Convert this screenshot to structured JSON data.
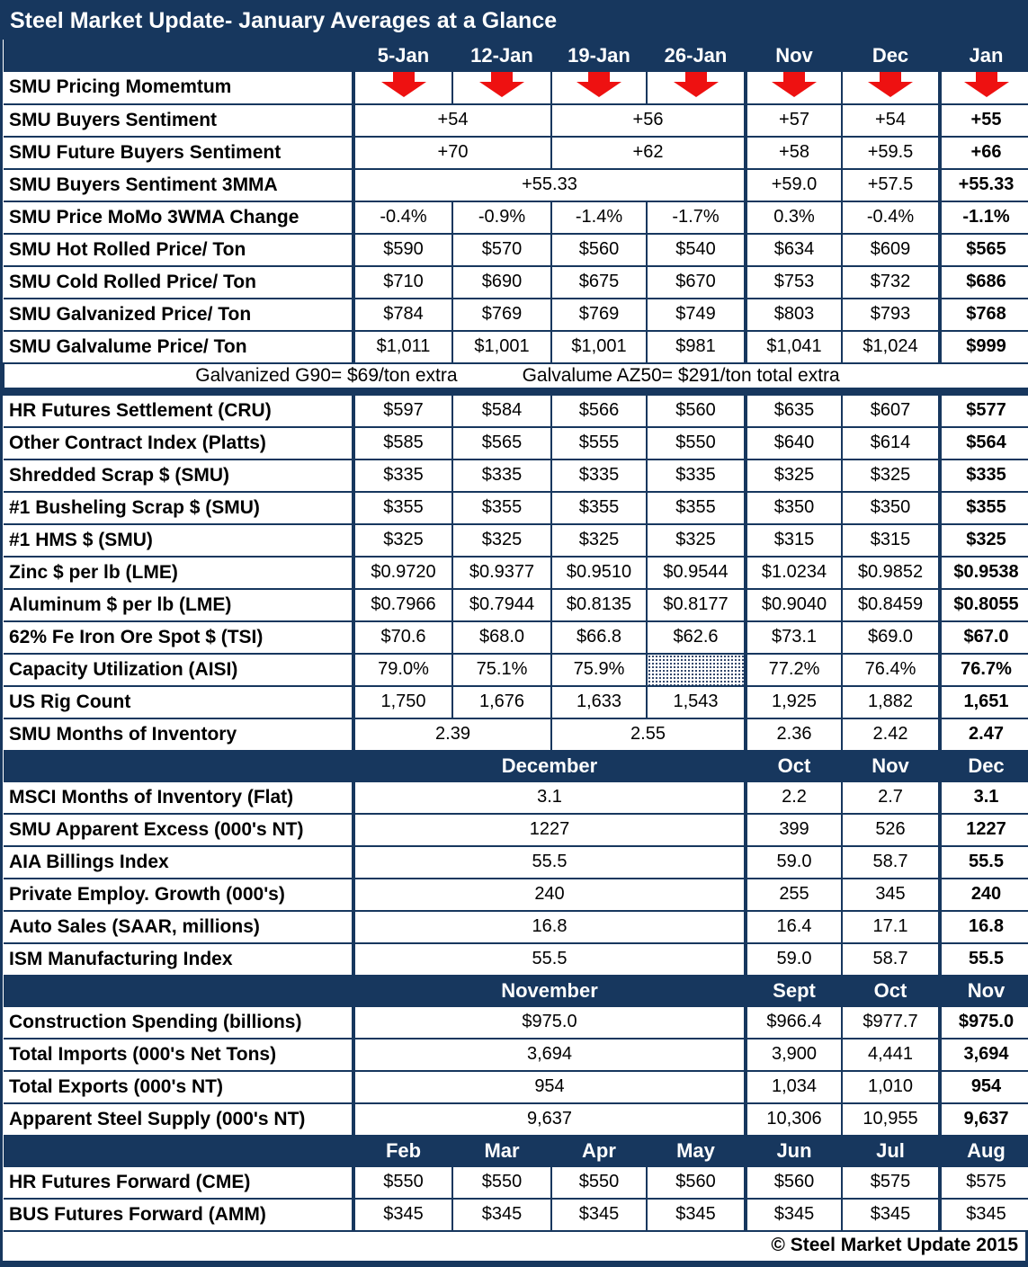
{
  "title": "Steel Market Update- January Averages at a Glance",
  "footer": "© Steel Market Update 2015",
  "colors": {
    "navy": "#17375E",
    "arrow_red": "#EE1111",
    "cell_bg": "#FFFFFF",
    "text": "#000000"
  },
  "rows": [
    {
      "kind": "colheader",
      "label": "",
      "cells": [
        {
          "t": "5-Jan"
        },
        {
          "t": "12-Jan"
        },
        {
          "t": "19-Jan"
        },
        {
          "t": "26-Jan"
        },
        {
          "t": "Nov"
        },
        {
          "t": "Dec"
        },
        {
          "t": "Jan"
        }
      ]
    },
    {
      "kind": "data",
      "label": "SMU Pricing Momemtum",
      "cells": [
        {
          "arrow": "down"
        },
        {
          "arrow": "down"
        },
        {
          "arrow": "down"
        },
        {
          "arrow": "down"
        },
        {
          "arrow": "down"
        },
        {
          "arrow": "down"
        },
        {
          "arrow": "down"
        }
      ]
    },
    {
      "kind": "data",
      "label": "SMU Buyers Sentiment",
      "cells": [
        {
          "t": "+54",
          "s": 2
        },
        {
          "t": "+56",
          "s": 2
        },
        {
          "t": "+57"
        },
        {
          "t": "+54"
        },
        {
          "t": "+55",
          "b": true
        }
      ]
    },
    {
      "kind": "data",
      "label": "SMU Future Buyers Sentiment",
      "cells": [
        {
          "t": "+70",
          "s": 2
        },
        {
          "t": "+62",
          "s": 2
        },
        {
          "t": "+58"
        },
        {
          "t": "+59.5"
        },
        {
          "t": "+66",
          "b": true
        }
      ]
    },
    {
      "kind": "data",
      "label": "SMU Buyers Sentiment 3MMA",
      "cells": [
        {
          "t": "+55.33",
          "s": 4
        },
        {
          "t": "+59.0"
        },
        {
          "t": "+57.5"
        },
        {
          "t": "+55.33",
          "b": true
        }
      ]
    },
    {
      "kind": "data",
      "label": "SMU Price MoMo 3WMA Change",
      "cells": [
        {
          "t": "-0.4%"
        },
        {
          "t": "-0.9%"
        },
        {
          "t": "-1.4%"
        },
        {
          "t": "-1.7%"
        },
        {
          "t": "0.3%"
        },
        {
          "t": "-0.4%"
        },
        {
          "t": "-1.1%",
          "b": true
        }
      ]
    },
    {
      "kind": "data",
      "label": "SMU Hot Rolled Price/ Ton",
      "cells": [
        {
          "t": "$590"
        },
        {
          "t": "$570"
        },
        {
          "t": "$560"
        },
        {
          "t": "$540"
        },
        {
          "t": "$634"
        },
        {
          "t": "$609"
        },
        {
          "t": "$565",
          "b": true
        }
      ]
    },
    {
      "kind": "data",
      "label": "SMU Cold Rolled Price/ Ton",
      "cells": [
        {
          "t": "$710"
        },
        {
          "t": "$690"
        },
        {
          "t": "$675"
        },
        {
          "t": "$670"
        },
        {
          "t": "$753"
        },
        {
          "t": "$732"
        },
        {
          "t": "$686",
          "b": true
        }
      ]
    },
    {
      "kind": "data",
      "label": "SMU Galvanized Price/ Ton",
      "cells": [
        {
          "t": "$784"
        },
        {
          "t": "$769"
        },
        {
          "t": "$769"
        },
        {
          "t": "$749"
        },
        {
          "t": "$803"
        },
        {
          "t": "$793"
        },
        {
          "t": "$768",
          "b": true
        }
      ]
    },
    {
      "kind": "data",
      "label": "SMU Galvalume Price/ Ton",
      "cells": [
        {
          "t": "$1,011"
        },
        {
          "t": "$1,001"
        },
        {
          "t": "$1,001"
        },
        {
          "t": "$981"
        },
        {
          "t": "$1,041"
        },
        {
          "t": "$1,024"
        },
        {
          "t": "$999",
          "b": true
        }
      ]
    },
    {
      "kind": "note",
      "texts": [
        "Galvanized G90= $69/ton extra",
        "Galvalume AZ50= $291/ton total extra"
      ]
    },
    {
      "kind": "separator"
    },
    {
      "kind": "data",
      "label": "HR Futures Settlement (CRU)",
      "cells": [
        {
          "t": "$597"
        },
        {
          "t": "$584"
        },
        {
          "t": "$566"
        },
        {
          "t": "$560"
        },
        {
          "t": "$635"
        },
        {
          "t": "$607"
        },
        {
          "t": "$577",
          "b": true
        }
      ]
    },
    {
      "kind": "data",
      "label": "Other Contract Index (Platts)",
      "cells": [
        {
          "t": "$585"
        },
        {
          "t": "$565"
        },
        {
          "t": "$555"
        },
        {
          "t": "$550"
        },
        {
          "t": "$640"
        },
        {
          "t": "$614"
        },
        {
          "t": "$564",
          "b": true
        }
      ]
    },
    {
      "kind": "data",
      "label": "Shredded Scrap $ (SMU)",
      "cells": [
        {
          "t": "$335"
        },
        {
          "t": "$335"
        },
        {
          "t": "$335"
        },
        {
          "t": "$335"
        },
        {
          "t": "$325"
        },
        {
          "t": "$325"
        },
        {
          "t": "$335",
          "b": true
        }
      ]
    },
    {
      "kind": "data",
      "label": "#1 Busheling Scrap $ (SMU)",
      "cells": [
        {
          "t": "$355"
        },
        {
          "t": "$355"
        },
        {
          "t": "$355"
        },
        {
          "t": "$355"
        },
        {
          "t": "$350"
        },
        {
          "t": "$350"
        },
        {
          "t": "$355",
          "b": true
        }
      ]
    },
    {
      "kind": "data",
      "label": "#1 HMS $ (SMU)",
      "cells": [
        {
          "t": "$325"
        },
        {
          "t": "$325"
        },
        {
          "t": "$325"
        },
        {
          "t": "$325"
        },
        {
          "t": "$315"
        },
        {
          "t": "$315"
        },
        {
          "t": "$325",
          "b": true
        }
      ]
    },
    {
      "kind": "data",
      "label": "Zinc $ per lb (LME)",
      "cells": [
        {
          "t": "$0.9720"
        },
        {
          "t": "$0.9377"
        },
        {
          "t": "$0.9510"
        },
        {
          "t": "$0.9544"
        },
        {
          "t": "$1.0234"
        },
        {
          "t": "$0.9852"
        },
        {
          "t": "$0.9538",
          "b": true
        }
      ]
    },
    {
      "kind": "data",
      "label": "Aluminum $ per lb (LME)",
      "cells": [
        {
          "t": "$0.7966"
        },
        {
          "t": "$0.7944"
        },
        {
          "t": "$0.8135"
        },
        {
          "t": "$0.8177"
        },
        {
          "t": "$0.9040"
        },
        {
          "t": "$0.8459"
        },
        {
          "t": "$0.8055",
          "b": true
        }
      ]
    },
    {
      "kind": "data",
      "label": "62% Fe Iron Ore Spot $ (TSI)",
      "cells": [
        {
          "t": "$70.6"
        },
        {
          "t": "$68.0"
        },
        {
          "t": "$66.8"
        },
        {
          "t": "$62.6"
        },
        {
          "t": "$73.1"
        },
        {
          "t": "$69.0"
        },
        {
          "t": "$67.0",
          "b": true
        }
      ]
    },
    {
      "kind": "data",
      "label": "Capacity Utilization (AISI)",
      "cells": [
        {
          "t": "79.0%"
        },
        {
          "t": "75.1%"
        },
        {
          "t": "75.9%"
        },
        {
          "hatch": true
        },
        {
          "t": "77.2%"
        },
        {
          "t": "76.4%"
        },
        {
          "t": "76.7%",
          "b": true
        }
      ]
    },
    {
      "kind": "data",
      "label": "US Rig Count",
      "cells": [
        {
          "t": "1,750"
        },
        {
          "t": "1,676"
        },
        {
          "t": "1,633"
        },
        {
          "t": "1,543"
        },
        {
          "t": "1,925"
        },
        {
          "t": "1,882"
        },
        {
          "t": "1,651",
          "b": true
        }
      ]
    },
    {
      "kind": "data",
      "label": "SMU Months of Inventory",
      "cells": [
        {
          "t": "2.39",
          "s": 2
        },
        {
          "t": "2.55",
          "s": 2
        },
        {
          "t": "2.36"
        },
        {
          "t": "2.42"
        },
        {
          "t": "2.47",
          "b": true
        }
      ]
    },
    {
      "kind": "band",
      "label": "",
      "cells": [
        {
          "t": "December",
          "s": 4
        },
        {
          "t": "Oct"
        },
        {
          "t": "Nov"
        },
        {
          "t": "Dec"
        }
      ]
    },
    {
      "kind": "data",
      "label": "MSCI Months of Inventory (Flat)",
      "cells": [
        {
          "t": "3.1",
          "s": 4
        },
        {
          "t": "2.2"
        },
        {
          "t": "2.7"
        },
        {
          "t": "3.1",
          "b": true
        }
      ]
    },
    {
      "kind": "data",
      "label": "SMU Apparent Excess (000's NT)",
      "cells": [
        {
          "t": "1227",
          "s": 4
        },
        {
          "t": "399"
        },
        {
          "t": "526"
        },
        {
          "t": "1227",
          "b": true
        }
      ]
    },
    {
      "kind": "data",
      "label": "AIA Billings Index",
      "cells": [
        {
          "t": "55.5",
          "s": 4
        },
        {
          "t": "59.0"
        },
        {
          "t": "58.7"
        },
        {
          "t": "55.5",
          "b": true
        }
      ]
    },
    {
      "kind": "data",
      "label": "Private Employ. Growth (000's)",
      "cells": [
        {
          "t": "240",
          "s": 4
        },
        {
          "t": "255"
        },
        {
          "t": "345"
        },
        {
          "t": "240",
          "b": true
        }
      ]
    },
    {
      "kind": "data",
      "label": "Auto Sales (SAAR, millions)",
      "cells": [
        {
          "t": "16.8",
          "s": 4
        },
        {
          "t": "16.4"
        },
        {
          "t": "17.1"
        },
        {
          "t": "16.8",
          "b": true
        }
      ]
    },
    {
      "kind": "data",
      "label": "ISM Manufacturing Index",
      "cells": [
        {
          "t": "55.5",
          "s": 4
        },
        {
          "t": "59.0"
        },
        {
          "t": "58.7"
        },
        {
          "t": "55.5",
          "b": true
        }
      ]
    },
    {
      "kind": "band",
      "label": "",
      "cells": [
        {
          "t": "November",
          "s": 4
        },
        {
          "t": "Sept"
        },
        {
          "t": "Oct"
        },
        {
          "t": "Nov"
        }
      ]
    },
    {
      "kind": "data",
      "label": "Construction Spending (billions)",
      "cells": [
        {
          "t": "$975.0",
          "s": 4
        },
        {
          "t": "$966.4"
        },
        {
          "t": "$977.7"
        },
        {
          "t": "$975.0",
          "b": true
        }
      ]
    },
    {
      "kind": "data",
      "label": "Total Imports (000's Net Tons)",
      "cells": [
        {
          "t": "3,694",
          "s": 4
        },
        {
          "t": "3,900"
        },
        {
          "t": "4,441"
        },
        {
          "t": "3,694",
          "b": true
        }
      ]
    },
    {
      "kind": "data",
      "label": "Total Exports (000's NT)",
      "cells": [
        {
          "t": "954",
          "s": 4
        },
        {
          "t": "1,034"
        },
        {
          "t": "1,010"
        },
        {
          "t": "954",
          "b": true
        }
      ]
    },
    {
      "kind": "data",
      "label": "Apparent Steel Supply (000's NT)",
      "cells": [
        {
          "t": "9,637",
          "s": 4
        },
        {
          "t": "10,306"
        },
        {
          "t": "10,955"
        },
        {
          "t": "9,637",
          "b": true
        }
      ]
    },
    {
      "kind": "band",
      "label": "",
      "cells": [
        {
          "t": "Feb"
        },
        {
          "t": "Mar"
        },
        {
          "t": "Apr"
        },
        {
          "t": "May"
        },
        {
          "t": "Jun"
        },
        {
          "t": "Jul"
        },
        {
          "t": "Aug"
        }
      ]
    },
    {
      "kind": "data",
      "label": "HR Futures Forward (CME)",
      "cells": [
        {
          "t": "$550"
        },
        {
          "t": "$550"
        },
        {
          "t": "$550"
        },
        {
          "t": "$560"
        },
        {
          "t": "$560"
        },
        {
          "t": "$575"
        },
        {
          "t": "$575"
        }
      ]
    },
    {
      "kind": "data",
      "label": "BUS Futures Forward (AMM)",
      "cells": [
        {
          "t": "$345"
        },
        {
          "t": "$345"
        },
        {
          "t": "$345"
        },
        {
          "t": "$345"
        },
        {
          "t": "$345"
        },
        {
          "t": "$345"
        },
        {
          "t": "$345"
        }
      ]
    }
  ]
}
